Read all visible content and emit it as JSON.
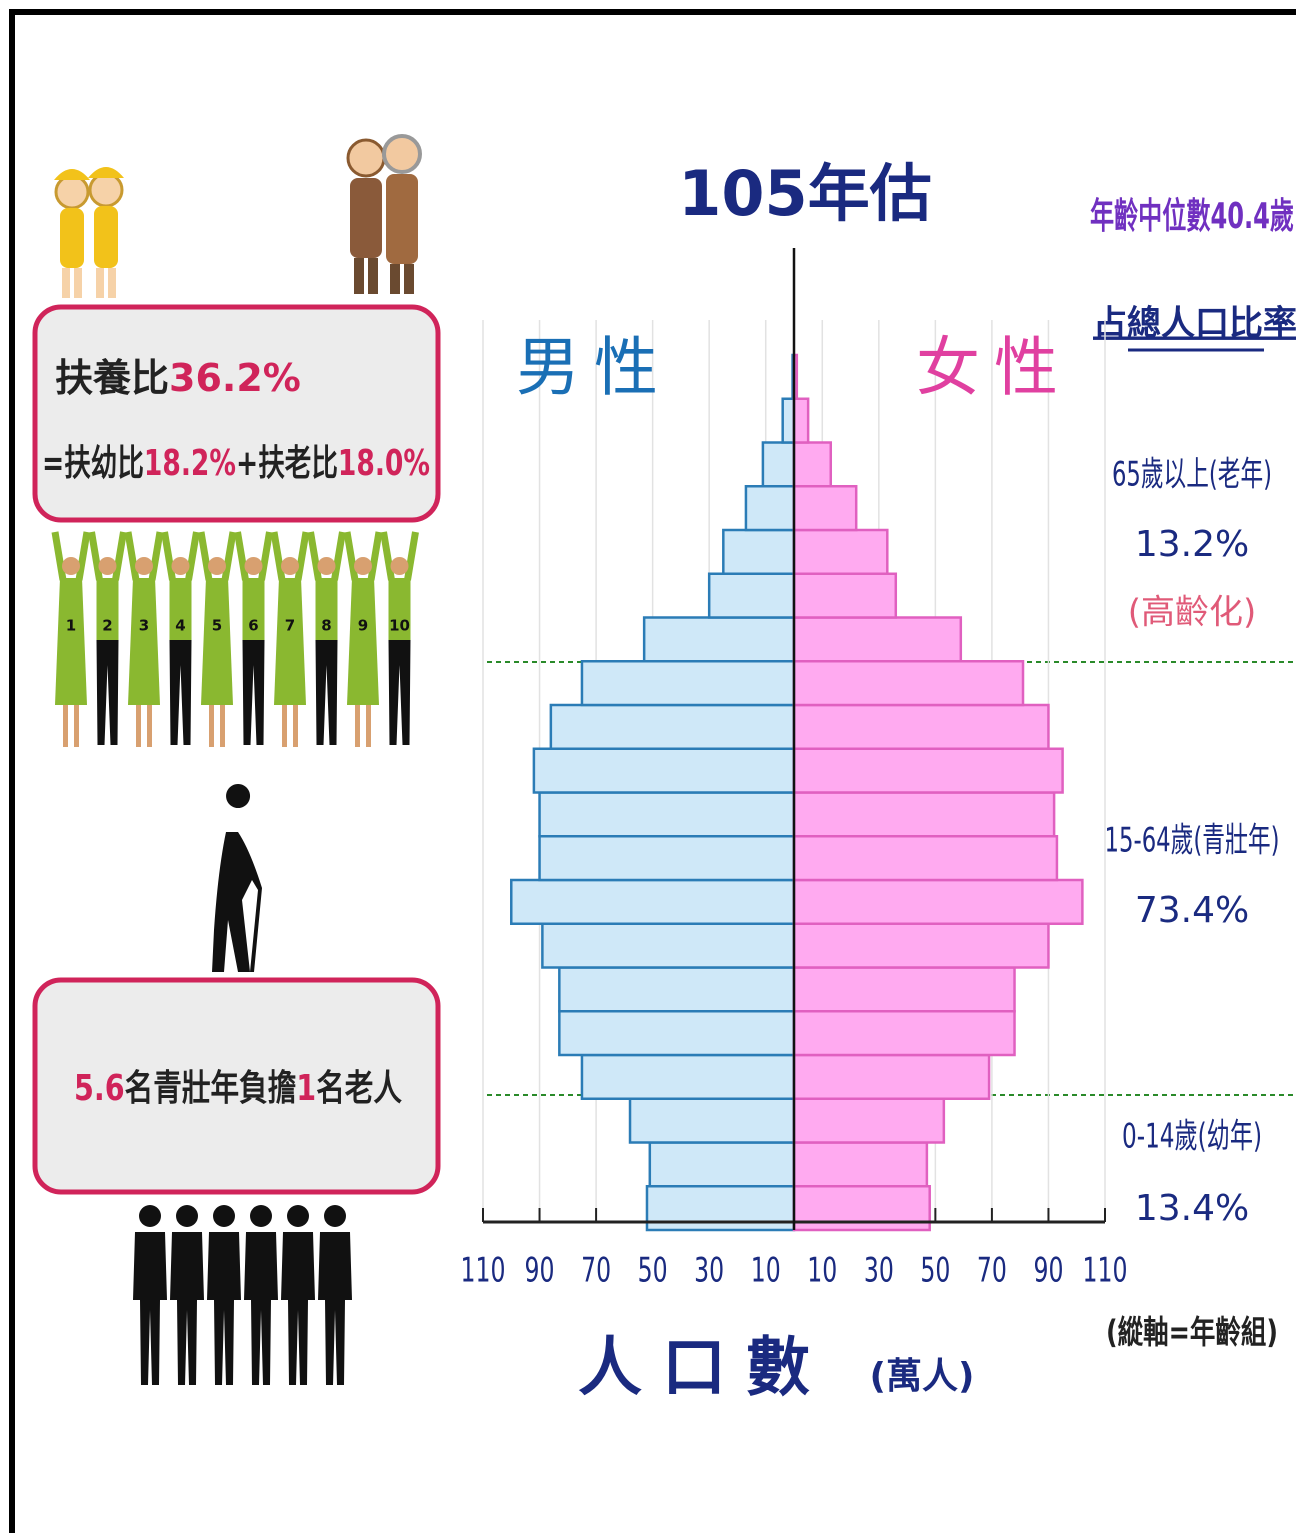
{
  "title": "105年估",
  "median_age": "年齡中位數40.4歲",
  "share_heading": "占總人口比率",
  "groups": [
    {
      "label": "65歲以上(老年)",
      "share": "13.2%",
      "note": "(高齡化)"
    },
    {
      "label": "15-64歲(青壯年)",
      "share": "73.4%"
    },
    {
      "label": "0-14歲(幼年)",
      "share": "13.4%"
    }
  ],
  "axis_note": "(縱軸=年齡組)",
  "dependency": {
    "line1": [
      "扶養比",
      "36.2%"
    ],
    "line2": [
      "=扶幼比",
      "18.2%",
      "+扶老比",
      "18.0%"
    ]
  },
  "support": [
    "5.6",
    "名青壯年負擔",
    "1",
    "名老人"
  ],
  "people_numbers": [
    "1",
    "2",
    "3",
    "4",
    "5",
    "6",
    "7",
    "8",
    "9",
    "10"
  ],
  "chart_data": {
    "type": "pyramid",
    "xlabel": "人口數",
    "xunit": "(萬人)",
    "xlim": [
      0,
      110
    ],
    "xticks": [
      10,
      30,
      50,
      70,
      90,
      110
    ],
    "grid": true,
    "series": [
      {
        "name": "男性",
        "side": "left",
        "color": "#cfe8f8",
        "edge": "#2b7cb6",
        "text_color": "#1a6fb5",
        "values": [
          52,
          51,
          58,
          75,
          83,
          83,
          89,
          100,
          90,
          90,
          92,
          86,
          75,
          53,
          30,
          25,
          17,
          11,
          4,
          0.5
        ]
      },
      {
        "name": "女性",
        "side": "right",
        "color": "#ffaaf0",
        "edge": "#e060c0",
        "text_color": "#e040a0",
        "values": [
          48,
          47,
          53,
          69,
          78,
          78,
          90,
          102,
          93,
          92,
          95,
          90,
          81,
          59,
          36,
          33,
          22,
          13,
          5,
          1
        ]
      }
    ]
  }
}
